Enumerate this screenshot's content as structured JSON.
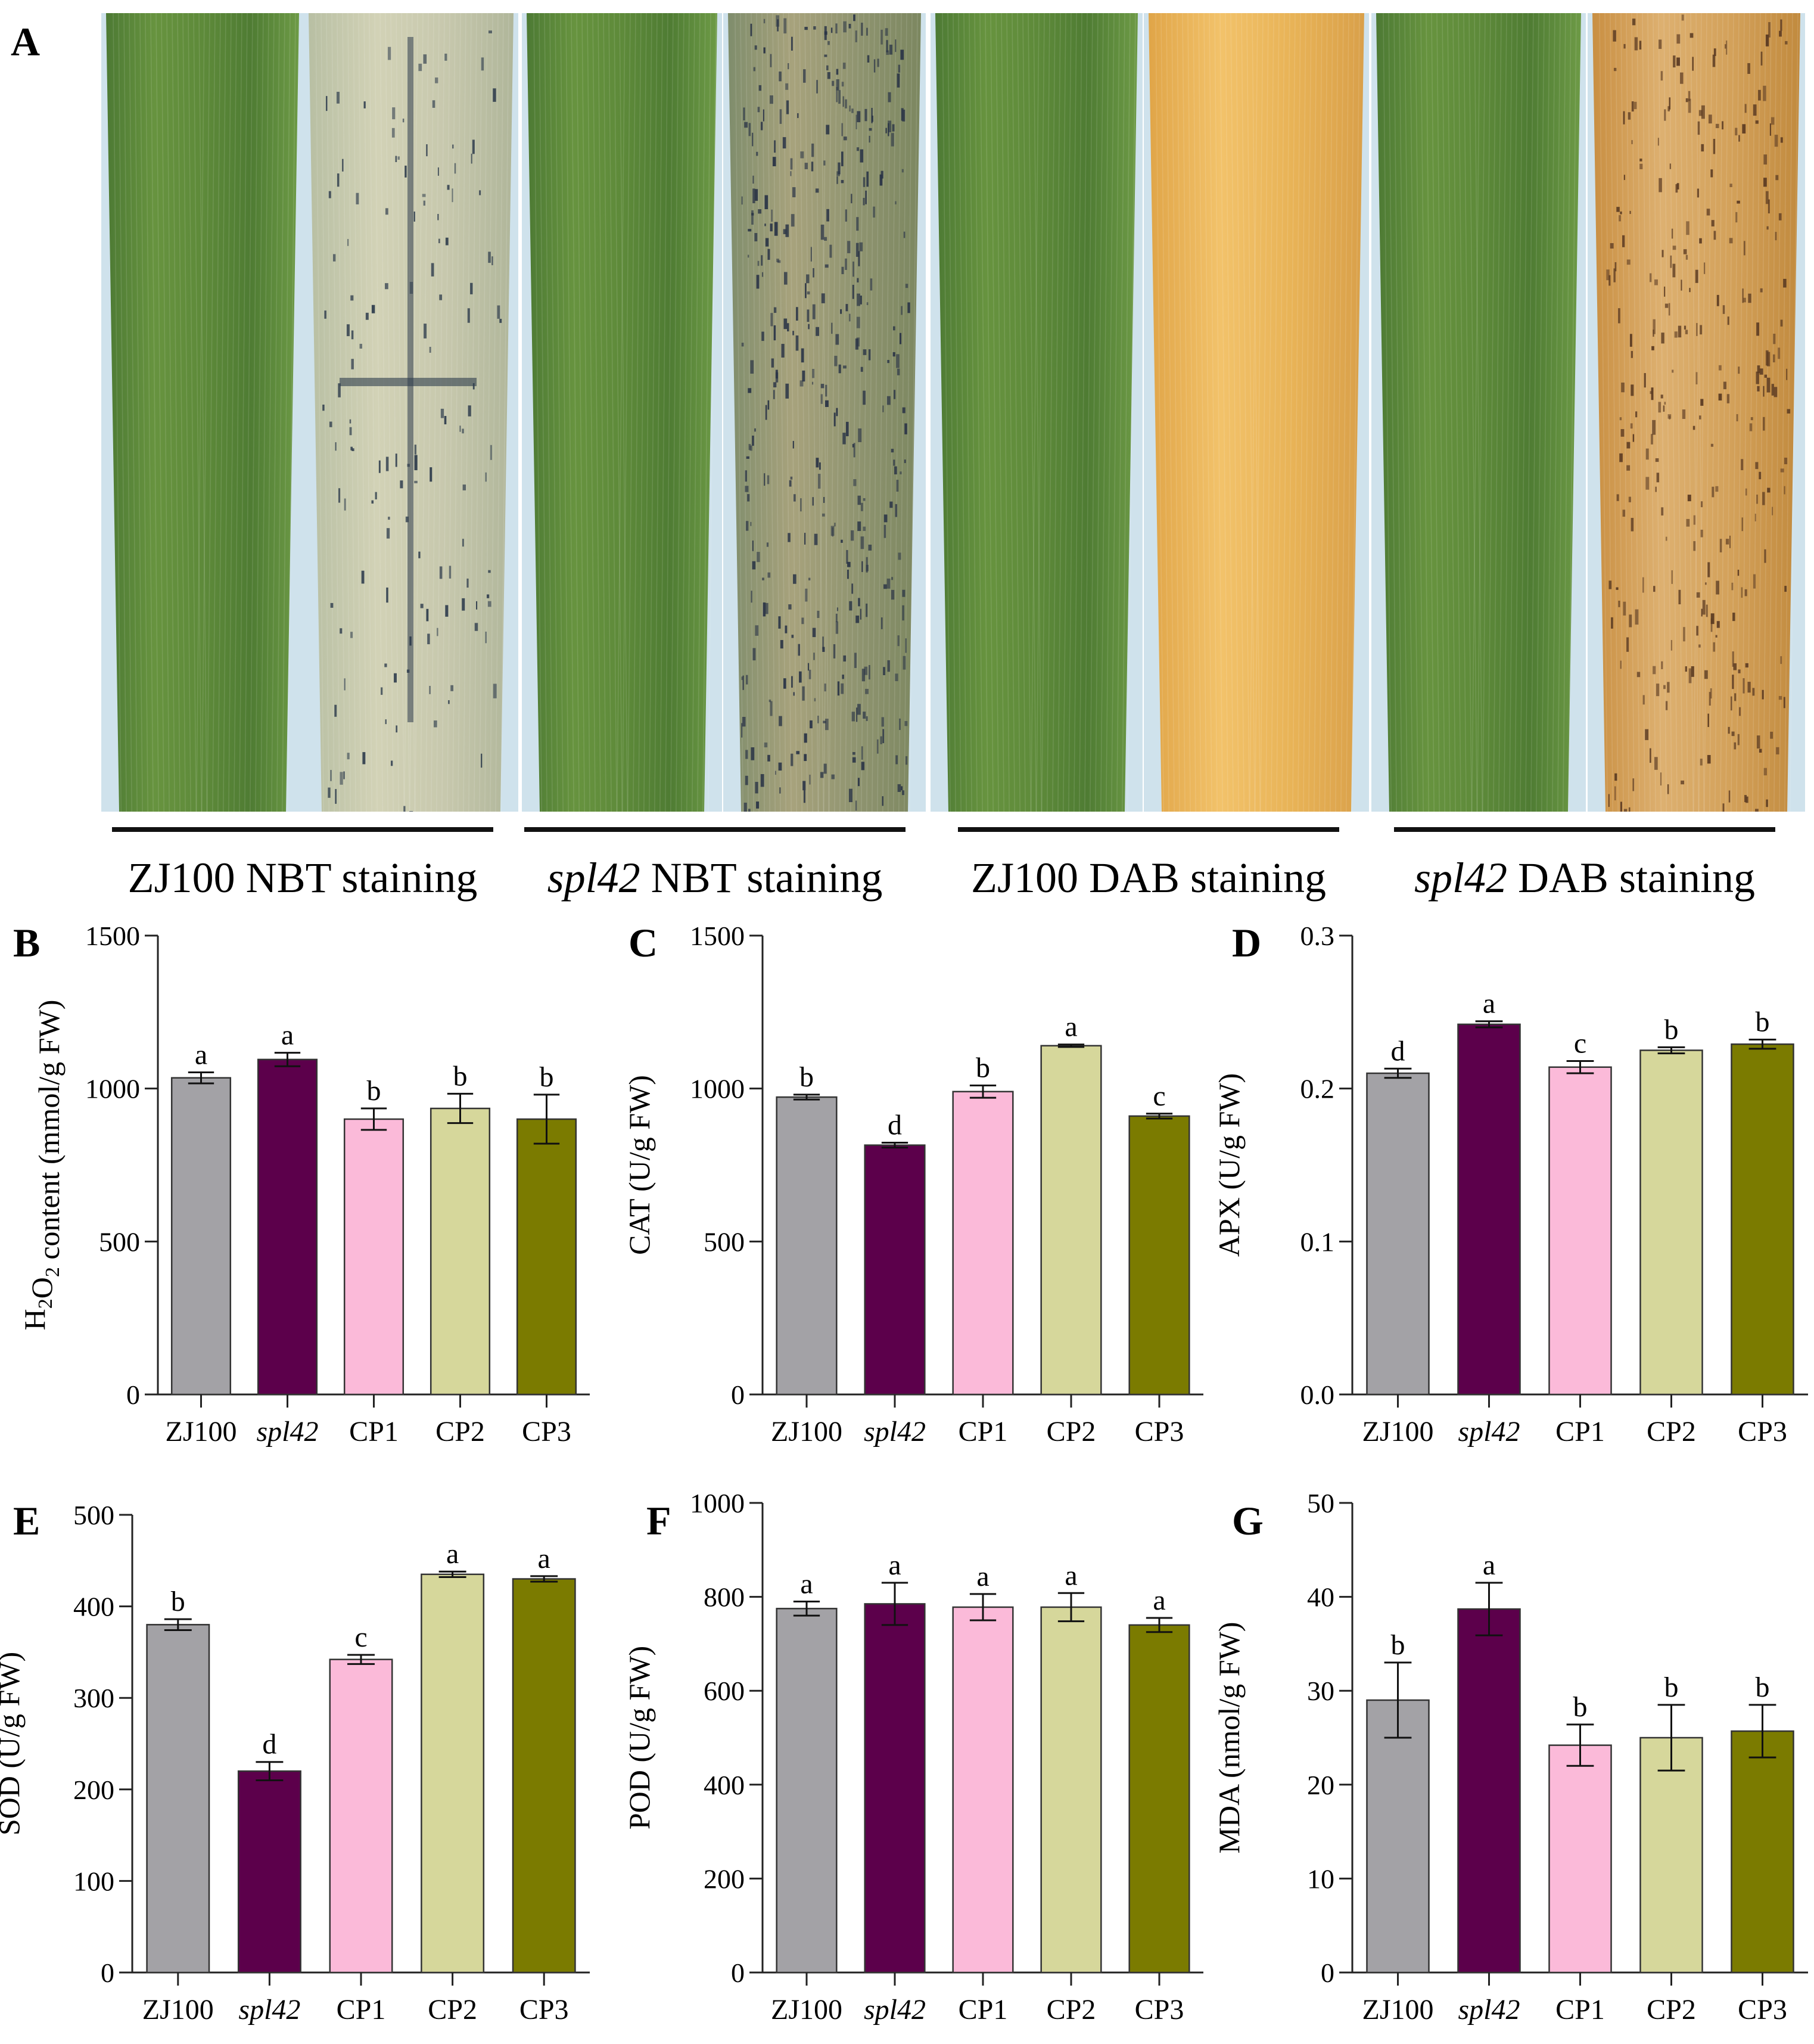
{
  "panel_a": {
    "letter": "A",
    "groups": [
      {
        "label_italic": "",
        "label_rest": "ZJ100 NBT staining"
      },
      {
        "label_italic": "spl42",
        "label_rest": " NBT staining"
      },
      {
        "label_italic": "",
        "label_rest": "ZJ100 DAB staining"
      },
      {
        "label_italic": "spl42",
        "label_rest": " DAB staining"
      }
    ],
    "leaf_photos": [
      {
        "name": "zj100-nbt-control-leaf",
        "type": "green"
      },
      {
        "name": "zj100-nbt-stained-leaf",
        "type": "nbt-light"
      },
      {
        "name": "spl42-nbt-control-leaf",
        "type": "green"
      },
      {
        "name": "spl42-nbt-stained-leaf",
        "type": "nbt-heavy"
      },
      {
        "name": "zj100-dab-control-leaf",
        "type": "green"
      },
      {
        "name": "zj100-dab-stained-leaf",
        "type": "dab-light"
      },
      {
        "name": "spl42-dab-control-leaf",
        "type": "green"
      },
      {
        "name": "spl42-dab-stained-leaf",
        "type": "dab-heavy"
      }
    ]
  },
  "colors": {
    "ZJ100": "#a3a2a6",
    "spl42": "#5c004b",
    "CP1": "#fbbad9",
    "CP2": "#d6d79b",
    "CP3": "#7b7b00"
  },
  "chart_data": [
    {
      "panel": "B",
      "type": "bar",
      "ylabel_parts": [
        "H",
        "2",
        "O",
        "2",
        " content (mmol/g FW)"
      ],
      "ylim": [
        0,
        1500
      ],
      "yticks": [
        "0",
        "500",
        "1000",
        "1500"
      ],
      "ytick_values": [
        0,
        500,
        1000,
        1500
      ],
      "categories": [
        "ZJ100",
        "spl42",
        "CP1",
        "CP2",
        "CP3"
      ],
      "values": [
        1035,
        1095,
        900,
        935,
        900
      ],
      "errors": [
        18,
        22,
        35,
        48,
        80
      ],
      "letters": [
        "a",
        "a",
        "b",
        "b",
        "b"
      ]
    },
    {
      "panel": "C",
      "type": "bar",
      "ylabel_parts": [
        "CAT (U/g FW)"
      ],
      "ylim": [
        0,
        1500
      ],
      "yticks": [
        "0",
        "500",
        "1000",
        "1500"
      ],
      "ytick_values": [
        0,
        500,
        1000,
        1500
      ],
      "categories": [
        "ZJ100",
        "spl42",
        "CP1",
        "CP2",
        "CP3"
      ],
      "values": [
        972,
        815,
        990,
        1140,
        910
      ],
      "errors": [
        8,
        8,
        20,
        4,
        8
      ],
      "letters": [
        "b",
        "d",
        "b",
        "a",
        "c"
      ]
    },
    {
      "panel": "D",
      "type": "bar",
      "ylabel_parts": [
        "APX (U/g FW)"
      ],
      "ylim": [
        0,
        0.3
      ],
      "yticks": [
        "0.0",
        "0.1",
        "0.2",
        "0.3"
      ],
      "ytick_values": [
        0,
        0.1,
        0.2,
        0.3
      ],
      "categories": [
        "ZJ100",
        "spl42",
        "CP1",
        "CP2",
        "CP3"
      ],
      "values": [
        0.21,
        0.242,
        0.214,
        0.225,
        0.229
      ],
      "errors": [
        0.003,
        0.002,
        0.004,
        0.002,
        0.003
      ],
      "letters": [
        "d",
        "a",
        "c",
        "b",
        "b"
      ]
    },
    {
      "panel": "E",
      "type": "bar",
      "ylabel_parts": [
        "SOD (U/g FW)"
      ],
      "ylim": [
        0,
        500
      ],
      "yticks": [
        "0",
        "100",
        "200",
        "300",
        "400",
        "500"
      ],
      "ytick_values": [
        0,
        100,
        200,
        300,
        400,
        500
      ],
      "categories": [
        "ZJ100",
        "spl42",
        "CP1",
        "CP2",
        "CP3"
      ],
      "values": [
        380,
        220,
        342,
        435,
        430
      ],
      "errors": [
        6,
        10,
        5,
        3,
        3
      ],
      "letters": [
        "b",
        "d",
        "c",
        "a",
        "a"
      ]
    },
    {
      "panel": "F",
      "type": "bar",
      "ylabel_parts": [
        "POD (U/g FW)"
      ],
      "ylim": [
        0,
        1000
      ],
      "yticks": [
        "0",
        "200",
        "400",
        "600",
        "800",
        "1000"
      ],
      "ytick_values": [
        0,
        200,
        400,
        600,
        800,
        1000
      ],
      "categories": [
        "ZJ100",
        "spl42",
        "CP1",
        "CP2",
        "CP3"
      ],
      "values": [
        775,
        785,
        778,
        778,
        740
      ],
      "errors": [
        15,
        45,
        28,
        30,
        15
      ],
      "letters": [
        "a",
        "a",
        "a",
        "a",
        "a"
      ]
    },
    {
      "panel": "G",
      "type": "bar",
      "ylabel_parts": [
        "MDA (nmol/g FW)"
      ],
      "ylim": [
        0,
        50
      ],
      "yticks": [
        "0",
        "10",
        "20",
        "30",
        "40",
        "50"
      ],
      "ytick_values": [
        0,
        10,
        20,
        30,
        40,
        50
      ],
      "categories": [
        "ZJ100",
        "spl42",
        "CP1",
        "CP2",
        "CP3"
      ],
      "values": [
        29,
        38.7,
        24.2,
        25,
        25.7
      ],
      "errors": [
        4,
        2.8,
        2.2,
        3.5,
        2.8
      ],
      "letters": [
        "b",
        "a",
        "b",
        "b",
        "b"
      ]
    }
  ]
}
